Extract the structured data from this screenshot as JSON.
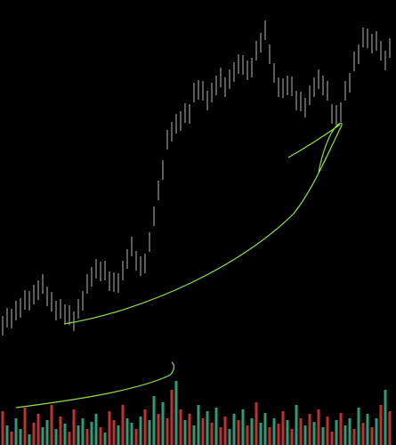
{
  "chart_data": [
    {
      "type": "ohlc",
      "color": "#b8b8b8",
      "ylim": [
        0,
        500
      ],
      "high": [
        145,
        154,
        153,
        162,
        165,
        174,
        173,
        180,
        185,
        192,
        178,
        172,
        162,
        164,
        158,
        157,
        150,
        164,
        173,
        192,
        200,
        209,
        206,
        207,
        195,
        194,
        193,
        207,
        220,
        234,
        218,
        212,
        215,
        239,
        268,
        297,
        320,
        354,
        363,
        372,
        375,
        384,
        383,
        407,
        410,
        409,
        398,
        407,
        415,
        424,
        413,
        422,
        430,
        439,
        438,
        432,
        435,
        454,
        463,
        477,
        450,
        429,
        413,
        412,
        415,
        414,
        398,
        397,
        390,
        404,
        413,
        422,
        415,
        409,
        383,
        382,
        385,
        409,
        418,
        442,
        450,
        469,
        468,
        462,
        465,
        454,
        443,
        457
      ],
      "low": [
        123,
        132,
        131,
        140,
        143,
        152,
        151,
        158,
        163,
        170,
        156,
        150,
        140,
        142,
        136,
        135,
        128,
        142,
        151,
        170,
        178,
        187,
        184,
        185,
        173,
        172,
        171,
        185,
        198,
        212,
        196,
        190,
        193,
        217,
        246,
        275,
        298,
        332,
        341,
        350,
        353,
        362,
        361,
        385,
        388,
        387,
        376,
        385,
        393,
        402,
        391,
        400,
        408,
        417,
        416,
        410,
        413,
        432,
        441,
        455,
        428,
        407,
        391,
        390,
        393,
        392,
        376,
        375,
        368,
        382,
        391,
        400,
        393,
        387,
        361,
        360,
        363,
        387,
        396,
        420,
        428,
        447,
        446,
        440,
        443,
        432,
        421,
        435
      ]
    },
    {
      "type": "bar",
      "ylim": [
        0,
        80
      ],
      "values": [
        38,
        22,
        15,
        30,
        18,
        42,
        12,
        25,
        35,
        20,
        28,
        45,
        18,
        32,
        24,
        15,
        40,
        22,
        30,
        18,
        26,
        35,
        20,
        14,
        38,
        28,
        22,
        45,
        30,
        25,
        18,
        32,
        40,
        28,
        55,
        35,
        48,
        30,
        62,
        72,
        40,
        28,
        35,
        22,
        45,
        30,
        38,
        25,
        42,
        20,
        32,
        18,
        35,
        28,
        40,
        22,
        30,
        48,
        25,
        36,
        20,
        30,
        24,
        38,
        28,
        18,
        45,
        30,
        22,
        35,
        26,
        40,
        20,
        32,
        15,
        28,
        36,
        22,
        30,
        18,
        42,
        25,
        35,
        20,
        30,
        45,
        62,
        38
      ],
      "colors": [
        "#b33",
        "#397",
        "#b33",
        "#397",
        "#397",
        "#b33",
        "#397",
        "#b33",
        "#b33",
        "#397",
        "#397",
        "#b33",
        "#397",
        "#b33",
        "#397",
        "#b33",
        "#b33",
        "#397",
        "#397",
        "#b33",
        "#397",
        "#397",
        "#b33",
        "#397",
        "#b33",
        "#b33",
        "#397",
        "#b33",
        "#397",
        "#397",
        "#b33",
        "#397",
        "#b33",
        "#397",
        "#397",
        "#b33",
        "#397",
        "#b33",
        "#b33",
        "#397",
        "#b33",
        "#397",
        "#b33",
        "#397",
        "#397",
        "#b33",
        "#397",
        "#b33",
        "#397",
        "#b33",
        "#b33",
        "#397",
        "#397",
        "#b33",
        "#397",
        "#b33",
        "#397",
        "#b33",
        "#397",
        "#397",
        "#b33",
        "#397",
        "#b33",
        "#b33",
        "#397",
        "#b33",
        "#397",
        "#b33",
        "#397",
        "#b33",
        "#397",
        "#b33",
        "#397",
        "#b33",
        "#b33",
        "#397",
        "#b33",
        "#397",
        "#397",
        "#b33",
        "#397",
        "#b33",
        "#397",
        "#b33",
        "#397",
        "#b33",
        "#397",
        "#b33"
      ]
    }
  ]
}
